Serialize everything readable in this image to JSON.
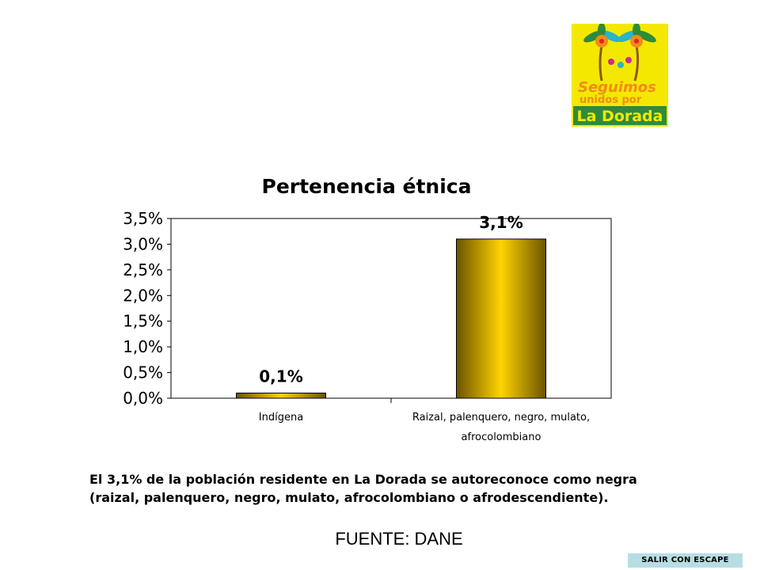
{
  "logo": {
    "line1": "Seguimos",
    "line2": "unidos por",
    "line3": "La Dorada",
    "colors": {
      "background": "#f4e800",
      "green": "#2e8b3a",
      "orange": "#f28a1a",
      "cyan": "#2bb3c8"
    }
  },
  "chart_data": {
    "type": "bar",
    "title": "Pertenencia étnica",
    "categories": [
      "Indígena",
      "Raizal, palenquero, negro, mulato, afrocolombiano"
    ],
    "category_lines": [
      [
        "Indígena"
      ],
      [
        "Raizal, palenquero, negro, mulato,",
        "afrocolombiano"
      ]
    ],
    "values": [
      0.1,
      3.1
    ],
    "data_labels": [
      "0,1%",
      "3,1%"
    ],
    "yticks": [
      "0,0%",
      "0,5%",
      "1,0%",
      "1,5%",
      "2,0%",
      "2,5%",
      "3,0%",
      "3,5%"
    ],
    "ylim": [
      0,
      3.5
    ],
    "grid": false,
    "bar_colors": {
      "edge": "#6b5300",
      "center": "#ffd400"
    }
  },
  "description": "El 3,1% de la población residente en La Dorada se autoreconoce como negra (raizal, palenquero, negro, mulato, afrocolombiano o afrodescendiente).",
  "source": "FUENTE: DANE",
  "exit_button": {
    "label": "SALIR CON ESCAPE",
    "color": "#b7dde4"
  }
}
